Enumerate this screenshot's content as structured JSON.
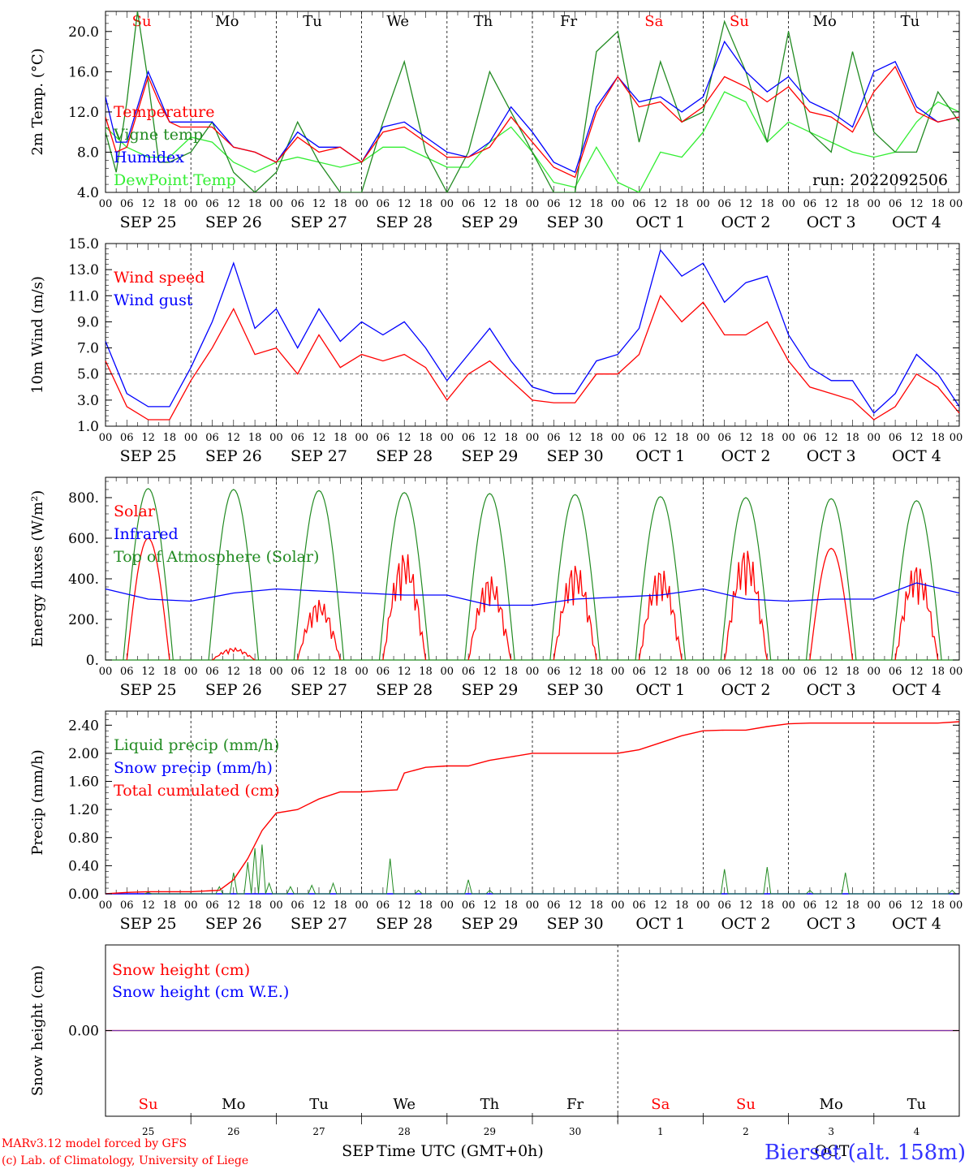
{
  "chart_data": [
    {
      "type": "line",
      "ylabel": "2m Temp. (°C)",
      "ylim": [
        4,
        22
      ],
      "yticks": [
        "4.0",
        "8.0",
        "12.0",
        "16.0",
        "20.0"
      ],
      "grid": "vertical dashed day separators",
      "legend_placement": "left",
      "run_label": "run: 2022092506",
      "series": [
        {
          "name": "Temperature",
          "color": "#ff0000",
          "x": [
            0,
            3,
            6,
            9,
            12,
            15,
            18,
            21,
            24,
            30,
            36,
            42,
            48,
            54,
            60,
            66,
            72,
            78,
            84,
            90,
            96,
            102,
            108,
            114,
            120,
            126,
            132,
            138,
            144,
            150,
            156,
            162,
            168,
            174,
            180,
            186,
            192,
            198,
            204,
            210,
            216,
            222,
            228,
            234,
            240
          ],
          "values": [
            11.5,
            8,
            8.5,
            12,
            15.5,
            13,
            11,
            10.5,
            10.5,
            10.5,
            8.5,
            8,
            7,
            9.5,
            8,
            8.5,
            7,
            10,
            10.5,
            9,
            7.5,
            7.5,
            8.5,
            11.5,
            9,
            6.5,
            5.5,
            12,
            15.5,
            12.5,
            13,
            11,
            12.5,
            15.5,
            14.5,
            13,
            14.5,
            12,
            11.5,
            10,
            14,
            16.5,
            12,
            11,
            11.5
          ]
        },
        {
          "name": "Vigne temp",
          "color": "#228b22",
          "x": [
            0,
            3,
            6,
            9,
            12,
            15,
            18,
            24,
            30,
            36,
            42,
            48,
            54,
            60,
            66,
            72,
            78,
            84,
            90,
            96,
            102,
            108,
            114,
            120,
            126,
            132,
            138,
            144,
            150,
            156,
            162,
            168,
            174,
            180,
            186,
            192,
            198,
            204,
            210,
            216,
            222,
            228,
            234,
            240
          ],
          "values": [
            10,
            6,
            13,
            22,
            15,
            7,
            7,
            8,
            11,
            6,
            4,
            6,
            11,
            7,
            4,
            4,
            11,
            17,
            8,
            4,
            8,
            16,
            12,
            8,
            4,
            4,
            18,
            20,
            9,
            17,
            11,
            12,
            21,
            16,
            9,
            20,
            10,
            8,
            18,
            10,
            8,
            8,
            14,
            11
          ]
        },
        {
          "name": "Humidex",
          "color": "#0000ff",
          "x": [
            0,
            3,
            6,
            9,
            12,
            15,
            18,
            21,
            24,
            30,
            36,
            42,
            48,
            54,
            60,
            66,
            72,
            78,
            84,
            90,
            96,
            102,
            108,
            114,
            120,
            126,
            132,
            138,
            144,
            150,
            156,
            162,
            168,
            174,
            180,
            186,
            192,
            198,
            204,
            210,
            216,
            222,
            228,
            234,
            240
          ],
          "values": [
            13.5,
            9,
            9,
            12.5,
            16,
            13.5,
            11,
            11,
            11,
            11,
            8.5,
            8,
            7,
            10,
            8.5,
            8.5,
            7,
            10.5,
            11,
            9.5,
            8,
            7.5,
            9,
            12.5,
            10,
            7,
            6,
            12.5,
            15.5,
            13,
            13.5,
            12,
            13.5,
            19,
            16,
            14,
            15.5,
            13,
            12,
            10.5,
            16,
            17,
            12.5,
            11,
            11.5
          ]
        },
        {
          "name": "DewPoint Temp",
          "color": "#33ee33",
          "x": [
            0,
            6,
            12,
            18,
            24,
            30,
            36,
            42,
            48,
            54,
            60,
            66,
            72,
            78,
            84,
            90,
            96,
            102,
            108,
            114,
            120,
            126,
            132,
            138,
            144,
            150,
            156,
            162,
            168,
            174,
            180,
            186,
            192,
            198,
            204,
            210,
            216,
            222,
            228,
            234,
            240
          ],
          "values": [
            10.5,
            8.5,
            7.5,
            7.5,
            9.5,
            9,
            7,
            6,
            7,
            7.5,
            7,
            6.5,
            7,
            8.5,
            8.5,
            7.5,
            6.5,
            6.5,
            9,
            10.5,
            8,
            5,
            4.5,
            8.5,
            5,
            4,
            8,
            7.5,
            10,
            14,
            13,
            9,
            11,
            10,
            9,
            8,
            7.5,
            8,
            11,
            13,
            12
          ]
        }
      ]
    },
    {
      "type": "line",
      "ylabel": "10m Wind (m/s)",
      "ylim": [
        1,
        15
      ],
      "yticks": [
        "1.0",
        "3.0",
        "5.0",
        "7.0",
        "9.0",
        "11.0",
        "13.0",
        "15.0"
      ],
      "reference_line": 5,
      "legend_placement": "left",
      "series": [
        {
          "name": "Wind speed",
          "color": "#ff0000",
          "x": [
            0,
            6,
            12,
            18,
            24,
            30,
            36,
            42,
            48,
            54,
            60,
            66,
            72,
            78,
            84,
            90,
            96,
            102,
            108,
            114,
            120,
            126,
            132,
            138,
            144,
            150,
            156,
            162,
            168,
            174,
            180,
            186,
            192,
            198,
            204,
            210,
            216,
            222,
            228,
            234,
            240
          ],
          "values": [
            6,
            2.5,
            1.5,
            1.5,
            4.5,
            7,
            10,
            6.5,
            7,
            5,
            8,
            5.5,
            6.5,
            6,
            6.5,
            5.5,
            3,
            5,
            6,
            4.5,
            3,
            2.8,
            2.8,
            5,
            5,
            6.5,
            11,
            9,
            10.5,
            8,
            8,
            9,
            6,
            4,
            3.5,
            3,
            1.5,
            2.5,
            5,
            4,
            2
          ]
        },
        {
          "name": "Wind gust",
          "color": "#0000ff",
          "x": [
            0,
            6,
            12,
            18,
            24,
            30,
            36,
            42,
            48,
            54,
            60,
            66,
            72,
            78,
            84,
            90,
            96,
            102,
            108,
            114,
            120,
            126,
            132,
            138,
            144,
            150,
            156,
            162,
            168,
            174,
            180,
            186,
            192,
            198,
            204,
            210,
            216,
            222,
            228,
            234,
            240
          ],
          "values": [
            7.5,
            3.5,
            2.5,
            2.5,
            5.5,
            9,
            13.5,
            8.5,
            10,
            7,
            10,
            7.5,
            9,
            8,
            9,
            7,
            4.5,
            6.5,
            8.5,
            6,
            4,
            3.5,
            3.5,
            6,
            6.5,
            8.5,
            14.5,
            12.5,
            13.5,
            10.5,
            12,
            12.5,
            8,
            5.5,
            4.5,
            4.5,
            2,
            3.5,
            6.5,
            5,
            2.5
          ]
        }
      ]
    },
    {
      "type": "line",
      "ylabel": "Energy fluxes (W/m²)",
      "ylim": [
        0,
        900
      ],
      "yticks": [
        "0.",
        "200.",
        "400.",
        "600.",
        "800."
      ],
      "legend_placement": "left",
      "series": [
        {
          "name": "Solar",
          "color": "#ff0000",
          "daily_peaks": [
            600,
            60,
            300,
            540,
            420,
            480,
            460,
            560,
            550,
            480
          ]
        },
        {
          "name": "Infrared",
          "color": "#0000ff",
          "x": [
            0,
            12,
            24,
            36,
            48,
            60,
            72,
            84,
            96,
            108,
            120,
            132,
            144,
            156,
            168,
            180,
            192,
            204,
            216,
            228,
            240
          ],
          "values": [
            350,
            300,
            290,
            330,
            350,
            340,
            330,
            320,
            320,
            270,
            270,
            300,
            310,
            320,
            350,
            300,
            290,
            300,
            300,
            380,
            330
          ]
        },
        {
          "name": "Top of Atmosphere (Solar)",
          "color": "#228b22",
          "daily_peaks": [
            845,
            840,
            835,
            825,
            820,
            815,
            805,
            800,
            795,
            785
          ]
        }
      ]
    },
    {
      "type": "line",
      "ylabel": "Precip (mm/h)",
      "ylim": [
        0,
        2.6
      ],
      "yticks": [
        "0.00",
        "0.40",
        "0.80",
        "1.20",
        "1.60",
        "2.00",
        "2.40"
      ],
      "legend_placement": "left",
      "series": [
        {
          "name": "Liquid precip (mm/h)",
          "color": "#228b22",
          "spikes": [
            [
              12,
              0.02
            ],
            [
              32,
              0.1
            ],
            [
              36,
              0.3
            ],
            [
              40,
              0.45
            ],
            [
              42,
              0.65
            ],
            [
              44,
              0.7
            ],
            [
              46,
              0.15
            ],
            [
              52,
              0.1
            ],
            [
              58,
              0.12
            ],
            [
              64,
              0.15
            ],
            [
              80,
              0.5
            ],
            [
              88,
              0.05
            ],
            [
              102,
              0.2
            ],
            [
              108,
              0.05
            ],
            [
              174,
              0.35
            ],
            [
              186,
              0.38
            ],
            [
              198,
              0.05
            ],
            [
              208,
              0.3
            ],
            [
              238,
              0.05
            ]
          ]
        },
        {
          "name": "Snow precip (mm/h)",
          "color": "#0000ff",
          "x": [
            0,
            240
          ],
          "values": [
            0,
            0
          ]
        },
        {
          "name": "Total cumulated (cm)",
          "color": "#ff0000",
          "x": [
            0,
            6,
            12,
            24,
            32,
            36,
            40,
            44,
            48,
            54,
            60,
            66,
            72,
            78,
            82,
            84,
            90,
            96,
            102,
            108,
            114,
            120,
            126,
            132,
            144,
            150,
            156,
            162,
            168,
            174,
            180,
            186,
            192,
            198,
            204,
            210,
            216,
            222,
            228,
            234,
            240
          ],
          "values": [
            0,
            0.02,
            0.03,
            0.03,
            0.05,
            0.2,
            0.5,
            0.9,
            1.15,
            1.2,
            1.35,
            1.45,
            1.45,
            1.47,
            1.48,
            1.72,
            1.8,
            1.82,
            1.82,
            1.9,
            1.95,
            2.0,
            2.0,
            2.0,
            2.0,
            2.05,
            2.15,
            2.25,
            2.32,
            2.33,
            2.33,
            2.38,
            2.42,
            2.43,
            2.43,
            2.43,
            2.43,
            2.43,
            2.43,
            2.43,
            2.45
          ]
        }
      ]
    },
    {
      "type": "line",
      "ylabel": "Snow height (cm)",
      "yticks": [
        "0.00"
      ],
      "legend_placement": "left",
      "series": [
        {
          "name": "Snow height (cm)",
          "color": "#ff0000",
          "x": [
            0,
            240
          ],
          "values": [
            0,
            0
          ]
        },
        {
          "name": "Snow height (cm W.E.)",
          "color": "#0000ff",
          "x": [
            0,
            240
          ],
          "values": [
            0,
            0
          ]
        }
      ]
    }
  ],
  "x_axis": {
    "hour_labels": [
      "00",
      "06",
      "12",
      "18"
    ],
    "end_label": "00",
    "dates": [
      "SEP 25",
      "SEP 26",
      "SEP 27",
      "SEP 28",
      "SEP 29",
      "SEP 30",
      "OCT  1",
      "OCT  2",
      "OCT  3",
      "OCT  4"
    ],
    "weekdays": [
      {
        "label": "Su",
        "color": "#ff0000"
      },
      {
        "label": "Mo",
        "color": "#000000"
      },
      {
        "label": "Tu",
        "color": "#000000"
      },
      {
        "label": "We",
        "color": "#000000"
      },
      {
        "label": "Th",
        "color": "#000000"
      },
      {
        "label": "Fr",
        "color": "#000000"
      },
      {
        "label": "Sa",
        "color": "#ff0000"
      },
      {
        "label": "Su",
        "color": "#ff0000"
      },
      {
        "label": "Mo",
        "color": "#000000"
      },
      {
        "label": "Tu",
        "color": "#000000"
      }
    ],
    "day_numbers": [
      "25",
      "26",
      "27",
      "28",
      "29",
      "30",
      "1",
      "2",
      "3",
      "4"
    ],
    "month_left": "SEP",
    "month_right": "OCT",
    "title": "Time UTC (GMT+0h)"
  },
  "footer": {
    "credit_line1": "MARv3.12 model forced by GFS",
    "credit_line2": "(c) Lab. of Climatology, University of Liege",
    "station": "Bierset (alt. 158m)"
  },
  "colors": {
    "temp": "#ff0000",
    "vigne": "#228b22",
    "humidex": "#0000ff",
    "dewpoint": "#33ee33",
    "station": "#3333ff"
  }
}
